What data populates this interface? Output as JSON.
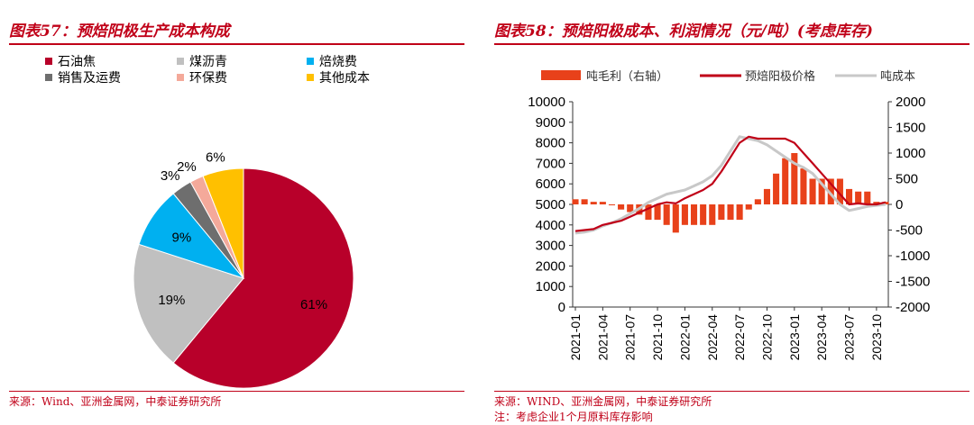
{
  "left": {
    "title": "图表57：预焙阳极生产成本构成",
    "source": "来源：Wind、亚洲金属网，中泰证券研究所"
  },
  "right": {
    "title": "图表58：预焙阳极成本、利润情况（元/吨）(考虑库存)",
    "source": "来源：WIND、亚洲金属网，中泰证券研究所",
    "note": "注：考虑企业1个月原料库存影响"
  },
  "chart_data": [
    {
      "type": "pie",
      "title": "",
      "categories": [
        "石油焦",
        "煤沥青",
        "焙烧费",
        "销售及运费",
        "环保费",
        "其他成本"
      ],
      "values": [
        61,
        19,
        9,
        3,
        2,
        6
      ],
      "labels": [
        "61%",
        "19%",
        "9%",
        "3%",
        "2%",
        "6%"
      ],
      "colors": [
        "#b8002a",
        "#c0c0c0",
        "#00b0f0",
        "#6e6e6e",
        "#f4a99a",
        "#ffc000"
      ],
      "legend_position": "top"
    },
    {
      "type": "line",
      "title": "",
      "legend": [
        "吨毛利（右轴）",
        "预焙阳极价格",
        "吨成本"
      ],
      "x": [
        "2021-01",
        "2021-02",
        "2021-03",
        "2021-04",
        "2021-05",
        "2021-06",
        "2021-07",
        "2021-08",
        "2021-09",
        "2021-10",
        "2021-11",
        "2021-12",
        "2022-01",
        "2022-02",
        "2022-03",
        "2022-04",
        "2022-05",
        "2022-06",
        "2022-07",
        "2022-08",
        "2022-09",
        "2022-10",
        "2022-11",
        "2022-12",
        "2023-01",
        "2023-02",
        "2023-03",
        "2023-04",
        "2023-05",
        "2023-06",
        "2023-07",
        "2023-08",
        "2023-09",
        "2023-10",
        "2023-11"
      ],
      "x_ticks": [
        "2021-01",
        "2021-04",
        "2021-07",
        "2021-10",
        "2022-01",
        "2022-04",
        "2022-07",
        "2022-10",
        "2023-01",
        "2023-04",
        "2023-07",
        "2023-10"
      ],
      "series": [
        {
          "name": "预焙阳极价格",
          "axis": "left",
          "color": "#c00018",
          "values": [
            3700,
            3750,
            3800,
            4000,
            4100,
            4200,
            4400,
            4600,
            4800,
            5000,
            5100,
            5050,
            5300,
            5500,
            5700,
            6000,
            6600,
            7300,
            8000,
            8300,
            8200,
            8200,
            8200,
            8200,
            8000,
            7500,
            7000,
            6500,
            6000,
            5500,
            5000,
            5050,
            5000,
            5000,
            5100
          ]
        },
        {
          "name": "吨成本",
          "axis": "left",
          "color": "#c8c8c8",
          "values": [
            3600,
            3650,
            3750,
            3950,
            4100,
            4300,
            4550,
            4800,
            5100,
            5300,
            5500,
            5600,
            5700,
            5900,
            6100,
            6400,
            6900,
            7600,
            8300,
            8200,
            8100,
            7900,
            7600,
            7300,
            7000,
            6800,
            6500,
            6000,
            5500,
            5000,
            4700,
            4800,
            4900,
            4950,
            5000
          ]
        },
        {
          "name": "吨毛利（右轴）",
          "axis": "right",
          "color": "#e8411a",
          "values": [
            100,
            100,
            50,
            50,
            0,
            -100,
            -150,
            -200,
            -300,
            -300,
            -400,
            -550,
            -400,
            -400,
            -400,
            -400,
            -300,
            -300,
            -300,
            -100,
            100,
            300,
            600,
            900,
            1000,
            700,
            500,
            500,
            500,
            500,
            300,
            250,
            250,
            50,
            50
          ]
        }
      ],
      "y_left": {
        "min": 0,
        "max": 10000,
        "ticks": [
          0,
          1000,
          2000,
          3000,
          4000,
          5000,
          6000,
          7000,
          8000,
          9000,
          10000
        ]
      },
      "y_right": {
        "min": -2000,
        "max": 2000,
        "ticks": [
          -2000,
          -1500,
          -1000,
          -500,
          0,
          500,
          1000,
          1500,
          2000
        ]
      },
      "legend_position": "top"
    }
  ]
}
